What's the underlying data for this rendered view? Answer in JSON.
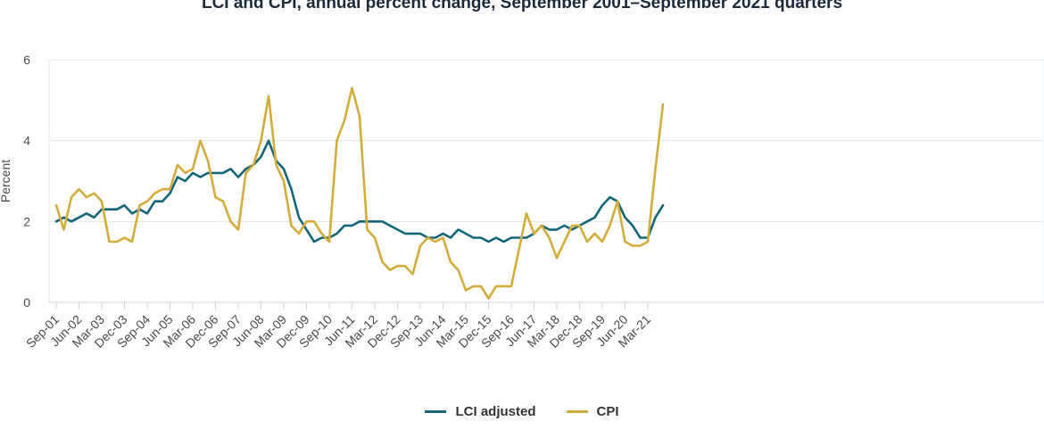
{
  "chart_data": {
    "type": "line",
    "title": "LCI and CPI, annual percent change, September 2001–September 2021 quarters",
    "ylabel": "Percent",
    "xlabel": "",
    "ylim": [
      0,
      6
    ],
    "yticks": [
      0,
      2,
      4,
      6
    ],
    "grid": true,
    "legend_position": "bottom",
    "x": [
      "Sep-01",
      "Dec-01",
      "Mar-02",
      "Jun-02",
      "Sep-02",
      "Dec-02",
      "Mar-03",
      "Jun-03",
      "Sep-03",
      "Dec-03",
      "Mar-04",
      "Jun-04",
      "Sep-04",
      "Dec-04",
      "Mar-05",
      "Jun-05",
      "Sep-05",
      "Dec-05",
      "Mar-06",
      "Jun-06",
      "Sep-06",
      "Dec-06",
      "Mar-07",
      "Jun-07",
      "Sep-07",
      "Dec-07",
      "Mar-08",
      "Jun-08",
      "Sep-08",
      "Dec-08",
      "Mar-09",
      "Jun-09",
      "Sep-09",
      "Dec-09",
      "Mar-10",
      "Jun-10",
      "Sep-10",
      "Dec-10",
      "Mar-11",
      "Jun-11",
      "Sep-11",
      "Dec-11",
      "Mar-12",
      "Jun-12",
      "Sep-12",
      "Dec-12",
      "Mar-13",
      "Jun-13",
      "Sep-13",
      "Dec-13",
      "Mar-14",
      "Jun-14",
      "Sep-14",
      "Dec-14",
      "Mar-15",
      "Jun-15",
      "Sep-15",
      "Dec-15",
      "Mar-16",
      "Jun-16",
      "Sep-16",
      "Dec-16",
      "Mar-17",
      "Jun-17",
      "Sep-17",
      "Dec-17",
      "Mar-18",
      "Jun-18",
      "Sep-18",
      "Dec-18",
      "Mar-19",
      "Jun-19",
      "Sep-19",
      "Dec-19",
      "Mar-20",
      "Jun-20",
      "Sep-20",
      "Dec-20",
      "Mar-21",
      "Jun-21",
      "Sep-21"
    ],
    "x_tick_labels": [
      "Sep-01",
      "Jun-02",
      "Mar-03",
      "Dec-03",
      "Sep-04",
      "Jun-05",
      "Mar-06",
      "Dec-06",
      "Sep-07",
      "Jun-08",
      "Mar-09",
      "Dec-09",
      "Sep-10",
      "Jun-11",
      "Mar-12",
      "Dec-12",
      "Sep-13",
      "Jun-14",
      "Mar-15",
      "Dec-15",
      "Sep-16",
      "Jun-17",
      "Mar-18",
      "Dec-18",
      "Sep-19",
      "Jun-20",
      "Mar-21"
    ],
    "series": [
      {
        "name": "LCI adjusted",
        "color": "#13667a",
        "values": [
          2.0,
          2.1,
          2.0,
          2.1,
          2.2,
          2.1,
          2.3,
          2.3,
          2.3,
          2.4,
          2.2,
          2.3,
          2.2,
          2.5,
          2.5,
          2.7,
          3.1,
          3.0,
          3.2,
          3.1,
          3.2,
          3.2,
          3.2,
          3.3,
          3.1,
          3.3,
          3.4,
          3.6,
          4.0,
          3.5,
          3.3,
          2.8,
          2.1,
          1.8,
          1.5,
          1.6,
          1.6,
          1.7,
          1.9,
          1.9,
          2.0,
          2.0,
          2.0,
          2.0,
          1.9,
          1.8,
          1.7,
          1.7,
          1.7,
          1.6,
          1.6,
          1.7,
          1.6,
          1.8,
          1.7,
          1.6,
          1.6,
          1.5,
          1.6,
          1.5,
          1.6,
          1.6,
          1.6,
          1.7,
          1.9,
          1.8,
          1.8,
          1.9,
          1.8,
          1.9,
          2.0,
          2.1,
          2.4,
          2.6,
          2.5,
          2.1,
          1.9,
          1.6,
          1.6,
          2.1,
          2.4
        ]
      },
      {
        "name": "CPI",
        "color": "#d4ac3a",
        "values": [
          2.4,
          1.8,
          2.6,
          2.8,
          2.6,
          2.7,
          2.5,
          1.5,
          1.5,
          1.6,
          1.5,
          2.4,
          2.5,
          2.7,
          2.8,
          2.8,
          3.4,
          3.2,
          3.3,
          4.0,
          3.5,
          2.6,
          2.5,
          2.0,
          1.8,
          3.2,
          3.4,
          4.0,
          5.1,
          3.4,
          3.0,
          1.9,
          1.7,
          2.0,
          2.0,
          1.7,
          1.5,
          4.0,
          4.5,
          5.3,
          4.6,
          1.8,
          1.6,
          1.0,
          0.8,
          0.9,
          0.9,
          0.7,
          1.4,
          1.6,
          1.5,
          1.6,
          1.0,
          0.8,
          0.3,
          0.4,
          0.4,
          0.1,
          0.4,
          0.4,
          0.4,
          1.3,
          2.2,
          1.7,
          1.9,
          1.6,
          1.1,
          1.5,
          1.9,
          1.9,
          1.5,
          1.7,
          1.5,
          1.9,
          2.5,
          1.5,
          1.4,
          1.4,
          1.5,
          3.3,
          4.9
        ]
      }
    ]
  }
}
